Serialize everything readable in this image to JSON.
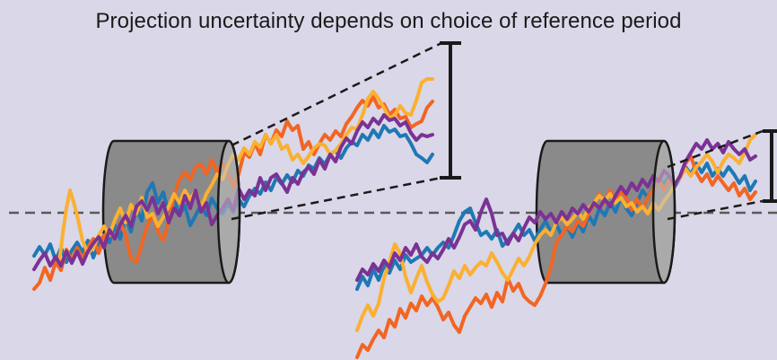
{
  "title": "Projection uncertainty depends on choice of reference period",
  "colors": {
    "background": "#d9d7e8",
    "cylinder_body": "#8a8a8a",
    "cylinder_face": "#c4c4c4",
    "outline": "#1a1a1a",
    "baseline": "#5a5a5a"
  },
  "series_colors": [
    "#1f78b4",
    "#f26522",
    "#fbb031",
    "#7b3294"
  ],
  "panels": [
    {
      "label": "reference-period-early",
      "uncertainty": "large"
    },
    {
      "label": "reference-period-late",
      "uncertainty": "small"
    }
  ]
}
